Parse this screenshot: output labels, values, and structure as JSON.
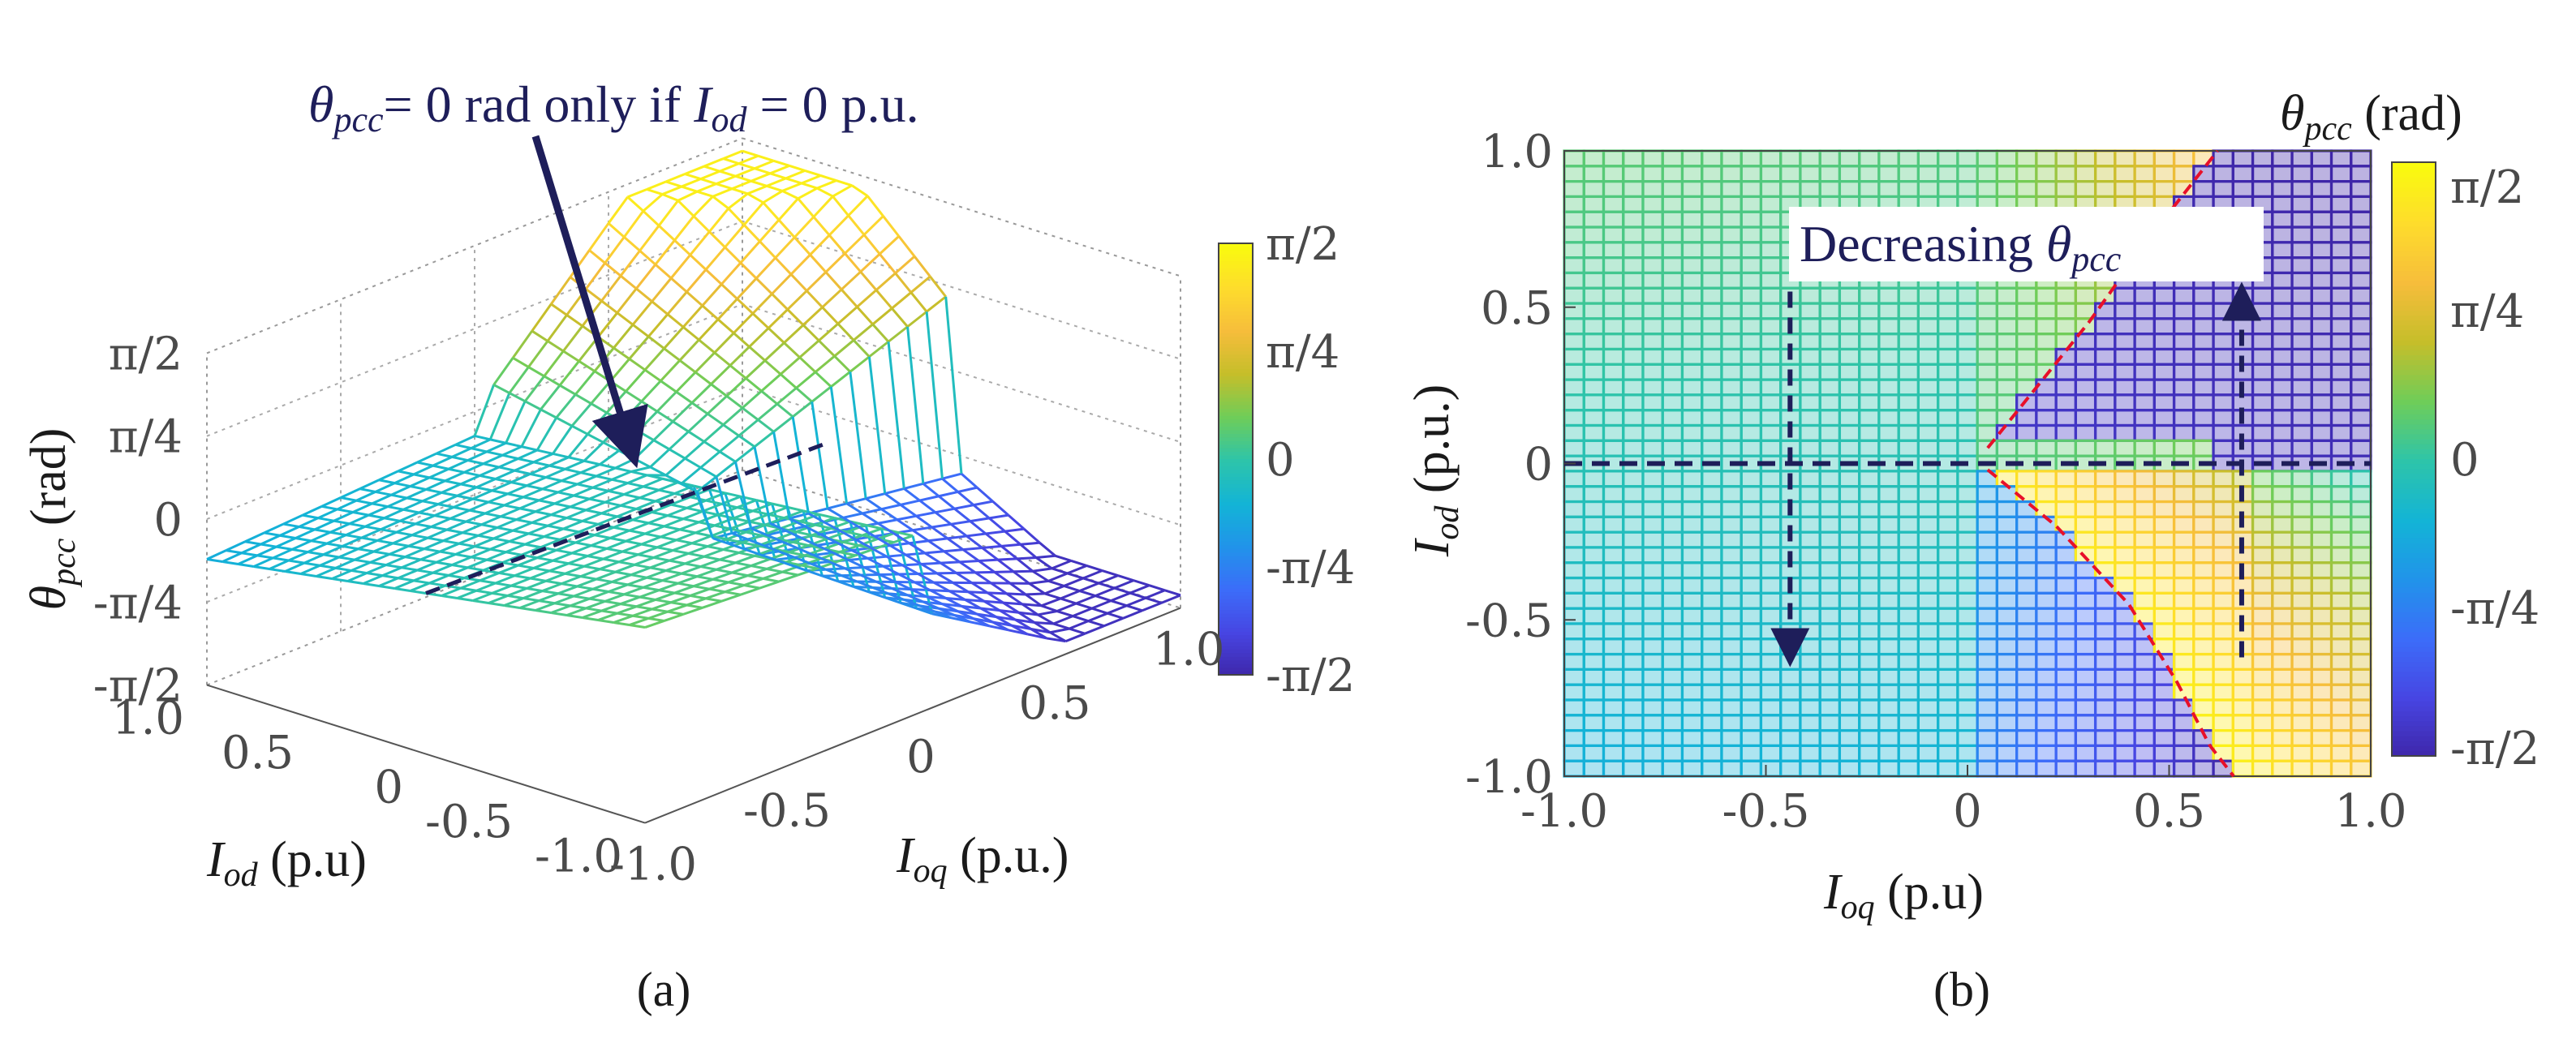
{
  "chart_data": [
    {
      "type": "surface",
      "panel": "(a)",
      "caption": "(a)",
      "xlabel_sym": "I",
      "xlabel_sub": "od",
      "xlabel_unit": " (p.u)",
      "ylabel_sym": "I",
      "ylabel_sub": "oq",
      "ylabel_unit": " (p.u.)",
      "zlabel_sym": "θ",
      "zlabel_sub": "pcc",
      "zlabel_unit": " (rad)",
      "x_ticks": [
        "1.0",
        "0.5",
        "0",
        "-0.5",
        "-1.0"
      ],
      "y_ticks": [
        "-1.0",
        "-0.5",
        "0",
        "0.5",
        "1.0"
      ],
      "z_ticks": [
        "π/2",
        "π/4",
        "0",
        "-π/4",
        "-π/2"
      ],
      "xlim": [
        -1.0,
        1.0
      ],
      "ylim": [
        -1.0,
        1.0
      ],
      "zlim": [
        -1.5708,
        1.5708
      ],
      "colorbar_ticks": [
        "π/2",
        "π/4",
        "0",
        "-π/4",
        "-π/2"
      ],
      "annotation": {
        "part1_sym": "θ",
        "part1_sub": "pcc",
        "part2": "= 0 rad only if ",
        "part3_sym": "I",
        "part3_sub": "od",
        "part4": " = 0 p.u."
      }
    },
    {
      "type": "heatmap",
      "panel": "(b)",
      "caption": "(b)",
      "title_sym": "θ",
      "title_sub": "pcc",
      "title_unit": " (rad)",
      "xlabel_sym": "I",
      "xlabel_sub": "oq",
      "xlabel_unit": " (p.u)",
      "ylabel_sym": "I",
      "ylabel_sub": "od",
      "ylabel_unit": " (p.u.)",
      "x_ticks": [
        "-1.0",
        "-0.5",
        "0",
        "0.5",
        "1.0"
      ],
      "x_tick_values": [
        -1.0,
        -0.5,
        0,
        0.5,
        1.0
      ],
      "y_ticks": [
        "1.0",
        "0.5",
        "0",
        "-0.5",
        "-1.0"
      ],
      "y_tick_values": [
        1.0,
        0.5,
        0,
        -0.5,
        -1.0
      ],
      "xlim": [
        -1.0,
        1.0
      ],
      "ylim": [
        -1.0,
        1.0
      ],
      "clim": [
        -1.5708,
        1.5708
      ],
      "grid_n": 41,
      "colorbar_ticks": [
        "π/2",
        "π/4",
        "0",
        "-π/4",
        "-π/2"
      ],
      "colorbar_tick_values": [
        1.5708,
        0.7854,
        0,
        -0.7854,
        -1.5708
      ],
      "annotation": {
        "text": "Decreasing ",
        "sym": "θ",
        "sub": "pcc"
      },
      "boundary_upper": [
        [
          0.05,
          0.05
        ],
        [
          0.3,
          0.45
        ],
        [
          0.45,
          0.72
        ],
        [
          0.62,
          1.0
        ]
      ],
      "boundary_lower": [
        [
          0.05,
          -0.02
        ],
        [
          0.22,
          -0.2
        ],
        [
          0.4,
          -0.45
        ],
        [
          0.52,
          -0.7
        ],
        [
          0.6,
          -0.9
        ],
        [
          0.66,
          -1.0
        ]
      ],
      "arrow_down": {
        "x": -0.44,
        "y_from": 0.55,
        "y_to": -0.62
      },
      "arrow_up": {
        "x": 0.68,
        "y_from": -0.62,
        "y_to": 0.55
      },
      "zero_line_y": 0
    }
  ],
  "colormap": [
    "#3e26a8",
    "#4745e2",
    "#3c6cf9",
    "#2193ea",
    "#13b4d6",
    "#2dc4aa",
    "#6ecd59",
    "#c5be2a",
    "#f6bd3b",
    "#fedc2c",
    "#f9fb0e"
  ]
}
